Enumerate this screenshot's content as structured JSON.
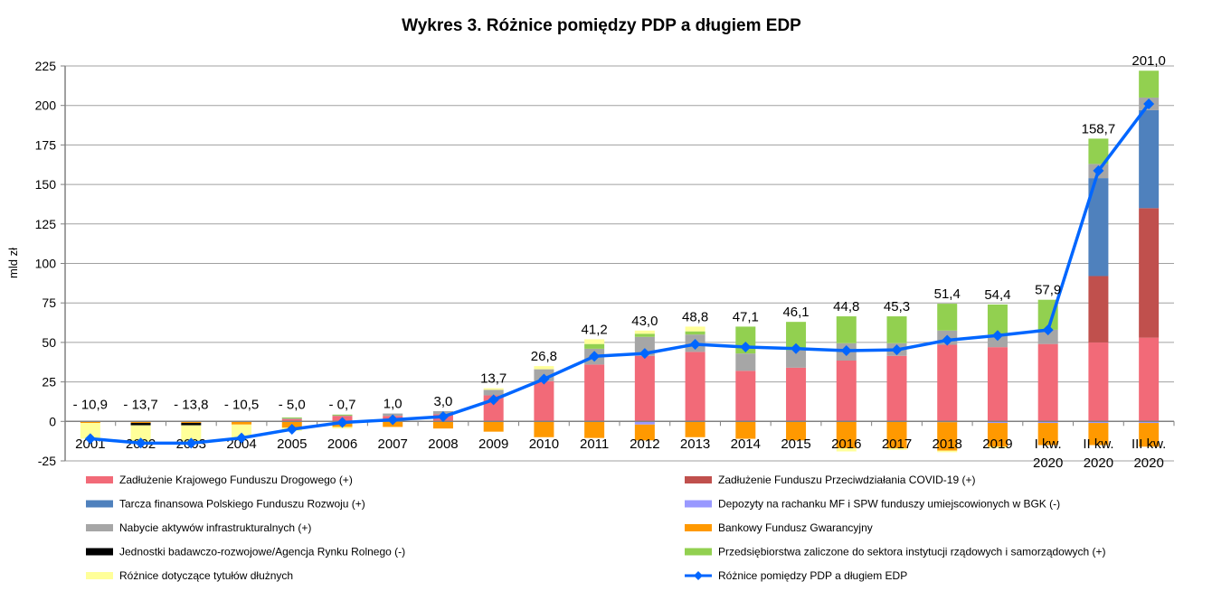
{
  "chart_data": {
    "type": "bar",
    "subtype": "stacked bar with line",
    "title": "Wykres 3. Różnice pomiędzy PDP a długiem EDP",
    "ylabel": "mld zł",
    "xlabel": "",
    "ylim": [
      -25,
      225
    ],
    "yticks": [
      -25,
      0,
      25,
      50,
      75,
      100,
      125,
      150,
      175,
      200,
      225
    ],
    "grid": true,
    "legend_position": "bottom",
    "categories": [
      "2001",
      "2002",
      "2003",
      "2004",
      "2005",
      "2006",
      "2007",
      "2008",
      "2009",
      "2010",
      "2011",
      "2012",
      "2013",
      "2014",
      "2015",
      "2016",
      "2017",
      "2018",
      "2019",
      "I kw.\n2020",
      "II kw.\n2020",
      "III kw.\n2020"
    ],
    "series": [
      {
        "name": "Zadłużenie Krajowego Funduszu Drogowego (+)",
        "color": "#F26A78",
        "values": [
          0,
          0,
          0,
          0,
          1.5,
          3.5,
          3.5,
          4.5,
          16.5,
          25.5,
          36,
          41.5,
          44,
          32,
          34,
          38.5,
          41.5,
          48.5,
          47,
          49,
          50,
          53
        ]
      },
      {
        "name": "Zadłużenie Funduszu Przeciwdziałania COVID-19 (+)",
        "color": "#C0504D",
        "values": [
          0,
          0,
          0,
          0,
          0,
          0,
          0,
          0,
          0,
          0,
          0,
          0,
          0,
          0,
          0,
          0,
          0,
          0,
          0,
          0,
          42,
          82
        ]
      },
      {
        "name": "Tarcza finansowa Polskiego Funduszu Rozwoju (+)",
        "color": "#4F81BD",
        "values": [
          0,
          0,
          0,
          0,
          0,
          0,
          0,
          0,
          0,
          0,
          0,
          0,
          0,
          0,
          0,
          0,
          0,
          0,
          0,
          0,
          62,
          62
        ]
      },
      {
        "name": "Depozyty na rachanku MF i SPW funduszy umiejscowionych w BGK (-)",
        "color": "#9999FF",
        "values": [
          0,
          0,
          0,
          0,
          0,
          0,
          0,
          0,
          0,
          0,
          0,
          -2,
          0,
          0,
          0,
          0,
          0,
          -0.5,
          -1,
          -1,
          -1,
          -1
        ]
      },
      {
        "name": "Nabycie aktywów infrastrukturalnych (+)",
        "color": "#A6A6A6",
        "values": [
          0,
          0,
          0,
          0,
          0.5,
          0.5,
          1.5,
          2,
          3.5,
          7.5,
          10,
          12,
          11,
          11,
          11,
          11,
          8,
          9,
          8,
          9,
          9,
          8
        ]
      },
      {
        "name": "Bankowy Fundusz Gwarancyjny",
        "color": "#FF9900",
        "values": [
          -1,
          -1,
          -1,
          -2,
          -4,
          -3.5,
          -3.5,
          -4.5,
          -6.5,
          -10,
          -10.5,
          -10,
          -10,
          -11,
          -12,
          -17,
          -17,
          -18,
          -15,
          -14,
          -14,
          -15
        ]
      },
      {
        "name": "Jednostki badawczo-rozwojowe/Agencja Rynku Rolnego (-)",
        "color": "#000000",
        "values": [
          0,
          -1.5,
          -1.5,
          0,
          0,
          0,
          0,
          0,
          0,
          0,
          0,
          0,
          0,
          0,
          0,
          0,
          0,
          0,
          0,
          0,
          0,
          0
        ]
      },
      {
        "name": "Przedsiębiorstwa zaliczone do sektora instytucji rządowych i samorządowych (+)",
        "color": "#92D050",
        "values": [
          0,
          0,
          0,
          0,
          0.5,
          0.3,
          0,
          0,
          0,
          0,
          3,
          2,
          2,
          17,
          18,
          17,
          17,
          17,
          19,
          19,
          16,
          17
        ]
      },
      {
        "name": "Różnice dotyczące tytułów dłużnych",
        "color": "#FFFF99",
        "values": [
          -10,
          -11,
          -11,
          -8.5,
          -2,
          -1,
          0,
          0,
          1,
          2,
          3,
          2,
          3,
          0,
          0,
          -2,
          -1,
          -1,
          -1,
          0,
          0,
          0
        ]
      }
    ],
    "line": {
      "name": "Różnice pomiędzy PDP a długiem EDP",
      "color": "#0066FF",
      "values": [
        -10.9,
        -13.7,
        -13.8,
        -10.5,
        -5.0,
        -0.7,
        1.0,
        3.0,
        13.7,
        26.8,
        41.2,
        43.0,
        48.8,
        47.1,
        46.1,
        44.8,
        45.3,
        51.4,
        54.4,
        57.9,
        158.7,
        201.0
      ],
      "labels": [
        "- 10,9",
        "- 13,7",
        "- 13,8",
        "- 10,5",
        "- 5,0",
        "- 0,7",
        "1,0",
        "3,0",
        "13,7",
        "26,8",
        "41,2",
        "43,0",
        "48,8",
        "47,1",
        "46,1",
        "44,8",
        "45,3",
        "51,4",
        "54,4",
        "57,9",
        "158,7",
        "201,0"
      ]
    },
    "legend_order": [
      0,
      1,
      2,
      3,
      4,
      5,
      6,
      7,
      8,
      "line"
    ]
  }
}
